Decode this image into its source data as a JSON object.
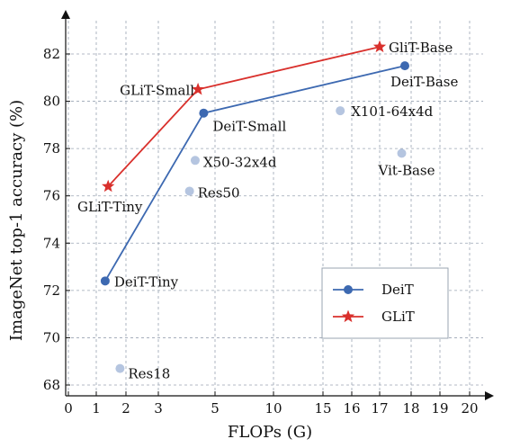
{
  "chart_data": {
    "type": "scatter",
    "title": "",
    "xlabel": "FLOPs (G)",
    "ylabel": "ImageNet top-1 accuracy (%)",
    "x_ticks": [
      "0",
      "1",
      "2",
      "3",
      "5",
      "10",
      "15",
      "16",
      "17",
      "18",
      "19",
      "20"
    ],
    "y_ticks": [
      "68",
      "70",
      "72",
      "74",
      "76",
      "78",
      "80",
      "82"
    ],
    "ylim": [
      67.5,
      83.5
    ],
    "x_scale": "piecewise (expanded 0-3 and 15-20 regions, compressed 3-15 region)",
    "grid": true,
    "legend_position": "lower-right",
    "series": [
      {
        "name": "DeiT",
        "color": "#3d69b1",
        "marker": "circle",
        "line": true,
        "points": [
          {
            "label": "DeiT-Tiny",
            "x": 1.3,
            "y": 72.4
          },
          {
            "label": "DeiT-Small",
            "x": 4.6,
            "y": 79.5
          },
          {
            "label": "DeiT-Base",
            "x": 17.8,
            "y": 81.5
          }
        ]
      },
      {
        "name": "GLiT",
        "color": "#d9302c",
        "marker": "star",
        "line": true,
        "points": [
          {
            "label": "GLiT-Tiny",
            "x": 1.4,
            "y": 76.4
          },
          {
            "label": "GLiT-Small",
            "x": 4.4,
            "y": 80.5
          },
          {
            "label": "GliT-Base",
            "x": 17.0,
            "y": 82.3
          }
        ]
      },
      {
        "name": "",
        "color": "#b5c5e0",
        "marker": "circle",
        "line": false,
        "points": [
          {
            "label": "Res18",
            "x": 1.8,
            "y": 68.7
          },
          {
            "label": "Res50",
            "x": 4.1,
            "y": 76.2
          },
          {
            "label": "X50-32x4d",
            "x": 4.3,
            "y": 77.5
          },
          {
            "label": "X101-64x4d",
            "x": 15.6,
            "y": 79.6
          },
          {
            "label": "Vit-Base",
            "x": 17.7,
            "y": 77.8
          }
        ]
      }
    ]
  }
}
